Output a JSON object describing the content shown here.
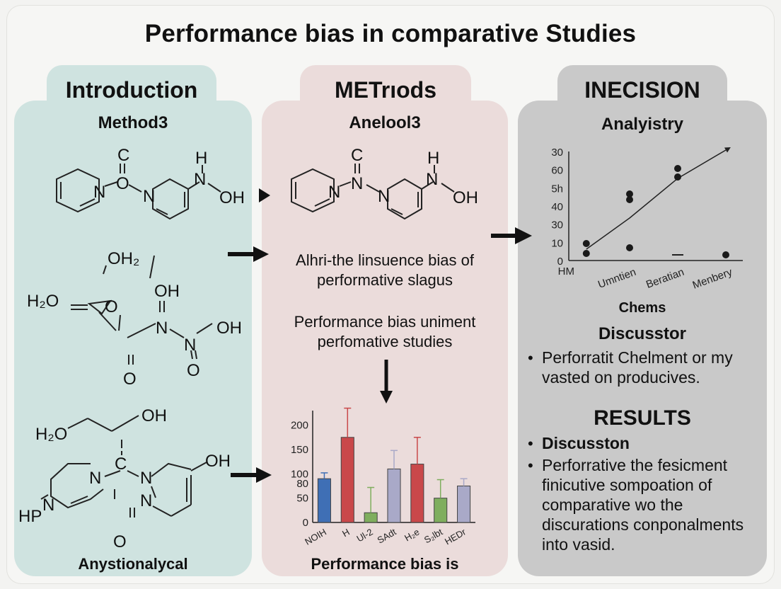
{
  "title": "Performance bias in comparative Studies",
  "panels": {
    "introduction": {
      "tab": "Introduction",
      "subtitle": "Method3",
      "caption": "Anystionalycal",
      "molecule1": {
        "atoms": [
          "C",
          "O",
          "N",
          "N",
          "H",
          "N",
          "OH"
        ]
      },
      "molecule2": {
        "atoms": [
          "OH₂",
          "H₂O",
          "O",
          "OH",
          "N",
          "N",
          "OH",
          "O",
          "O"
        ]
      },
      "molecule3": {
        "atoms": [
          "H₂O",
          "OH",
          "C",
          "N",
          "N",
          "N",
          "OH",
          "HP",
          "N",
          "O"
        ]
      }
    },
    "methods": {
      "tab": "METrıods",
      "subtitle": "Anelool3",
      "molecule": {
        "atoms": [
          "C",
          "N",
          "N",
          "N",
          "H",
          "N",
          "OH"
        ]
      },
      "text1_line1": "Alhri-the linsuence bias of",
      "text1_line2": "performative slagus",
      "text2_line1": "Performance bias uniment",
      "text2_line2": "perfomative studies",
      "caption": "Performance bias is"
    },
    "decision": {
      "tab": "INECISION",
      "subtitle": "Analyistry",
      "chart_caption": "Chems",
      "discussion_heading": "Discusstor",
      "discussion_line1": "Perforratit Chelment or my",
      "discussion_line2": "vasted on producives.",
      "results_heading": "RESULTS",
      "results_item1": "Discusston",
      "results_item2_line1": "Perforrative the fesicment",
      "results_item2_line2": "finicutive sompoation of",
      "results_item2_line3": "comparative wo the",
      "results_item2_line4": "discurations conponalments",
      "results_item2_line5": "into vasid.",
      "bullet": "•"
    }
  },
  "chart_data": [
    {
      "type": "bar",
      "categories": [
        "NOIH",
        "H",
        "Ul-2",
        "SAdt",
        "H₂e",
        "S₂lbt",
        "HEDr"
      ],
      "values": [
        90,
        175,
        20,
        110,
        120,
        50,
        75
      ],
      "errors": [
        12,
        60,
        52,
        38,
        55,
        38,
        15
      ],
      "colors": [
        "#3f6fb5",
        "#c9484a",
        "#7fae5e",
        "#a9a9c8",
        "#c9484a",
        "#7fae5e",
        "#a9a9c8"
      ],
      "yticks": [
        "0",
        "50",
        "80",
        "100",
        "150",
        "200"
      ],
      "ytick_values": [
        0,
        50,
        80,
        100,
        150,
        200
      ],
      "ylim": [
        0,
        230
      ]
    },
    {
      "type": "scatter",
      "categories": [
        "HM",
        "Umntien",
        "Beratian",
        "Menbery"
      ],
      "yticks": [
        "0",
        "10",
        "30",
        "40",
        "5h",
        "60",
        "30"
      ],
      "points": [
        {
          "x": 0.1,
          "y": 12
        },
        {
          "x": 0.1,
          "y": 5
        },
        {
          "x": 1.0,
          "y": 47
        },
        {
          "x": 1.0,
          "y": 43
        },
        {
          "x": 1.0,
          "y": 9
        },
        {
          "x": 2.0,
          "y": 65
        },
        {
          "x": 2.0,
          "y": 59
        },
        {
          "x": 3.0,
          "y": 4
        }
      ],
      "trend": [
        {
          "x": 0.1,
          "y": 8
        },
        {
          "x": 1.0,
          "y": 30
        },
        {
          "x": 2.0,
          "y": 58
        },
        {
          "x": 3.0,
          "y": 78
        }
      ]
    }
  ]
}
